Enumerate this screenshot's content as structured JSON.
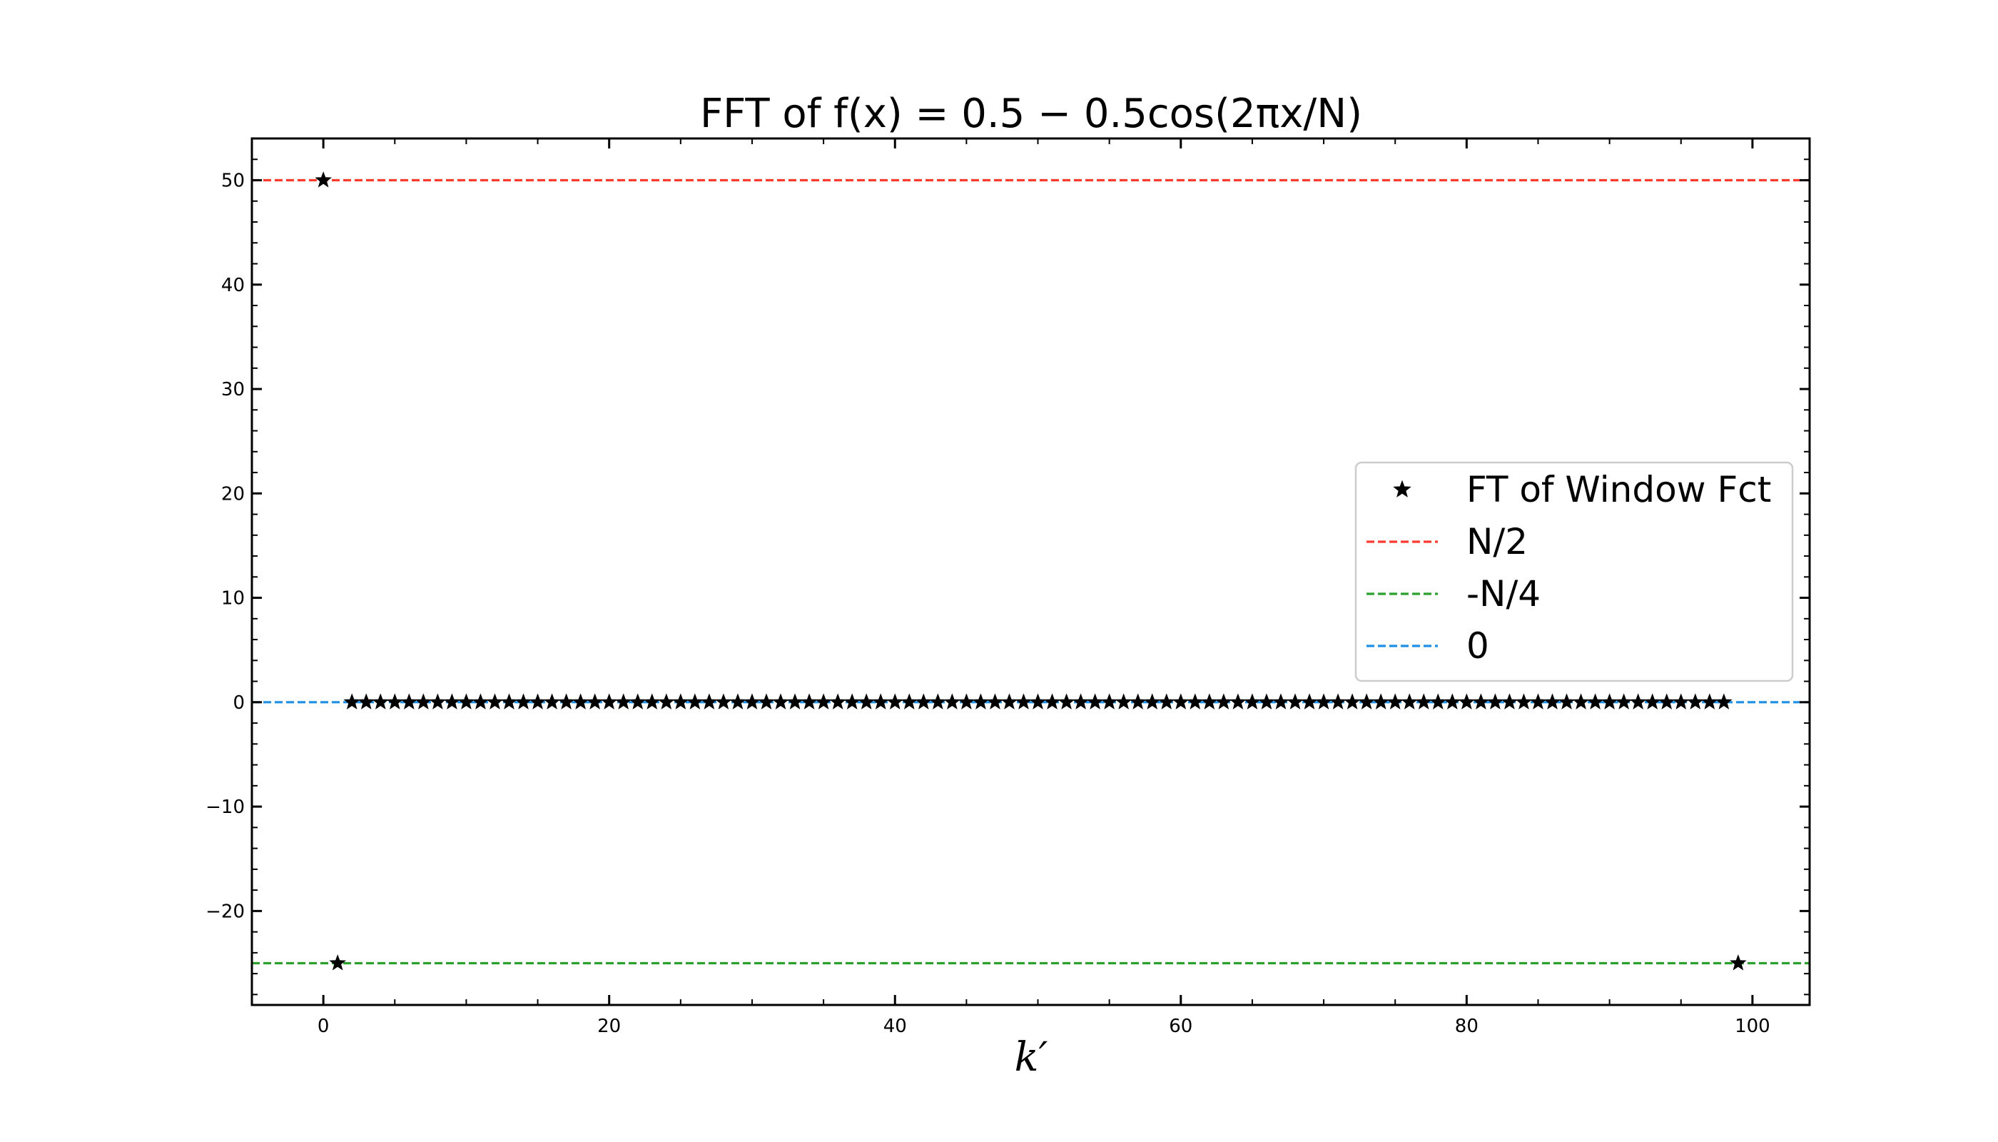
{
  "chart_data": {
    "type": "scatter",
    "title": "FFT of f(x) = 0.5 − 0.5cos(2πx/N)",
    "xlabel": "k′",
    "ylabel": "",
    "xlim": [
      -5,
      104
    ],
    "ylim": [
      -29,
      54
    ],
    "x_ticks": [
      0,
      20,
      40,
      60,
      80,
      100
    ],
    "y_ticks": [
      -20,
      -10,
      0,
      10,
      20,
      30,
      40,
      50
    ],
    "x_tick_labels": [
      "0",
      "20",
      "40",
      "60",
      "80",
      "100"
    ],
    "y_tick_labels": [
      "−20",
      "−10",
      "0",
      "10",
      "20",
      "30",
      "40",
      "50"
    ],
    "grid": false,
    "legend_position": "center-right",
    "series": [
      {
        "name": "FT of Window Fct",
        "kind": "scatter",
        "marker": "star",
        "color": "#000000",
        "points": [
          [
            0,
            50
          ],
          [
            1,
            -25
          ],
          [
            2,
            0
          ],
          [
            3,
            0
          ],
          [
            4,
            0
          ],
          [
            5,
            0
          ],
          [
            6,
            0
          ],
          [
            7,
            0
          ],
          [
            8,
            0
          ],
          [
            9,
            0
          ],
          [
            10,
            0
          ],
          [
            11,
            0
          ],
          [
            12,
            0
          ],
          [
            13,
            0
          ],
          [
            14,
            0
          ],
          [
            15,
            0
          ],
          [
            16,
            0
          ],
          [
            17,
            0
          ],
          [
            18,
            0
          ],
          [
            19,
            0
          ],
          [
            20,
            0
          ],
          [
            21,
            0
          ],
          [
            22,
            0
          ],
          [
            23,
            0
          ],
          [
            24,
            0
          ],
          [
            25,
            0
          ],
          [
            26,
            0
          ],
          [
            27,
            0
          ],
          [
            28,
            0
          ],
          [
            29,
            0
          ],
          [
            30,
            0
          ],
          [
            31,
            0
          ],
          [
            32,
            0
          ],
          [
            33,
            0
          ],
          [
            34,
            0
          ],
          [
            35,
            0
          ],
          [
            36,
            0
          ],
          [
            37,
            0
          ],
          [
            38,
            0
          ],
          [
            39,
            0
          ],
          [
            40,
            0
          ],
          [
            41,
            0
          ],
          [
            42,
            0
          ],
          [
            43,
            0
          ],
          [
            44,
            0
          ],
          [
            45,
            0
          ],
          [
            46,
            0
          ],
          [
            47,
            0
          ],
          [
            48,
            0
          ],
          [
            49,
            0
          ],
          [
            50,
            0
          ],
          [
            51,
            0
          ],
          [
            52,
            0
          ],
          [
            53,
            0
          ],
          [
            54,
            0
          ],
          [
            55,
            0
          ],
          [
            56,
            0
          ],
          [
            57,
            0
          ],
          [
            58,
            0
          ],
          [
            59,
            0
          ],
          [
            60,
            0
          ],
          [
            61,
            0
          ],
          [
            62,
            0
          ],
          [
            63,
            0
          ],
          [
            64,
            0
          ],
          [
            65,
            0
          ],
          [
            66,
            0
          ],
          [
            67,
            0
          ],
          [
            68,
            0
          ],
          [
            69,
            0
          ],
          [
            70,
            0
          ],
          [
            71,
            0
          ],
          [
            72,
            0
          ],
          [
            73,
            0
          ],
          [
            74,
            0
          ],
          [
            75,
            0
          ],
          [
            76,
            0
          ],
          [
            77,
            0
          ],
          [
            78,
            0
          ],
          [
            79,
            0
          ],
          [
            80,
            0
          ],
          [
            81,
            0
          ],
          [
            82,
            0
          ],
          [
            83,
            0
          ],
          [
            84,
            0
          ],
          [
            85,
            0
          ],
          [
            86,
            0
          ],
          [
            87,
            0
          ],
          [
            88,
            0
          ],
          [
            89,
            0
          ],
          [
            90,
            0
          ],
          [
            91,
            0
          ],
          [
            92,
            0
          ],
          [
            93,
            0
          ],
          [
            94,
            0
          ],
          [
            95,
            0
          ],
          [
            96,
            0
          ],
          [
            97,
            0
          ],
          [
            98,
            0
          ],
          [
            99,
            -25
          ]
        ]
      },
      {
        "name": "N/2",
        "kind": "hline",
        "y": 50,
        "color": "#ff3b30",
        "style": "dashed"
      },
      {
        "name": "-N/4",
        "kind": "hline",
        "y": -25,
        "color": "#2ca02c",
        "style": "dashed"
      },
      {
        "name": "0",
        "kind": "hline",
        "y": 0,
        "color": "#1f8fe6",
        "style": "dashed"
      }
    ]
  }
}
